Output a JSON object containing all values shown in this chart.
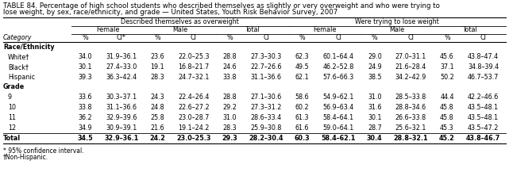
{
  "title_line1": "TABLE 84. Percentage of high school students who described themselves as slightly or very overweight and who were trying to",
  "title_line2": "lose weight, by sex, race/ethnicity, and grade — United States, Youth Risk Behavior Survey, 2007",
  "col_group1": "Described themselves as overweight",
  "col_group2": "Were trying to lose weight",
  "sub_groups": [
    "Female",
    "Male",
    "Total",
    "Female",
    "Male",
    "Total"
  ],
  "col_headers": [
    "%",
    "CI*",
    "%",
    "CI",
    "%",
    "CI",
    "%",
    "CI",
    "%",
    "CI",
    "%",
    "CI"
  ],
  "category_col": "Category",
  "sections": [
    {
      "section_title": "Race/Ethnicity",
      "rows": [
        {
          "label": "White†",
          "values": [
            "34.0",
            "31.9–36.1",
            "23.6",
            "22.0–25.3",
            "28.8",
            "27.3–30.3",
            "62.3",
            "60.1–64.4",
            "29.0",
            "27.0–31.1",
            "45.6",
            "43.8–47.4"
          ]
        },
        {
          "label": "Black†",
          "values": [
            "30.1",
            "27.4–33.0",
            "19.1",
            "16.8–21.7",
            "24.6",
            "22.7–26.6",
            "49.5",
            "46.2–52.8",
            "24.9",
            "21.6–28.4",
            "37.1",
            "34.8–39.4"
          ]
        },
        {
          "label": "Hispanic",
          "values": [
            "39.3",
            "36.3–42.4",
            "28.3",
            "24.7–32.1",
            "33.8",
            "31.1–36.6",
            "62.1",
            "57.6–66.3",
            "38.5",
            "34.2–42.9",
            "50.2",
            "46.7–53.7"
          ]
        }
      ]
    },
    {
      "section_title": "Grade",
      "rows": [
        {
          "label": "9",
          "values": [
            "33.6",
            "30.3–37.1",
            "24.3",
            "22.4–26.4",
            "28.8",
            "27.1–30.6",
            "58.6",
            "54.9–62.1",
            "31.0",
            "28.5–33.8",
            "44.4",
            "42.2–46.6"
          ]
        },
        {
          "label": "10",
          "values": [
            "33.8",
            "31.1–36.6",
            "24.8",
            "22.6–27.2",
            "29.2",
            "27.3–31.2",
            "60.2",
            "56.9–63.4",
            "31.6",
            "28.8–34.6",
            "45.8",
            "43.5–48.1"
          ]
        },
        {
          "label": "11",
          "values": [
            "36.2",
            "32.9–39.6",
            "25.8",
            "23.0–28.7",
            "31.0",
            "28.6–33.4",
            "61.3",
            "58.4–64.1",
            "30.1",
            "26.6–33.8",
            "45.8",
            "43.5–48.1"
          ]
        },
        {
          "label": "12",
          "values": [
            "34.9",
            "30.9–39.1",
            "21.6",
            "19.1–24.2",
            "28.3",
            "25.9–30.8",
            "61.6",
            "59.0–64.1",
            "28.7",
            "25.6–32.1",
            "45.3",
            "43.5–47.2"
          ]
        }
      ]
    }
  ],
  "total_row": {
    "label": "Total",
    "values": [
      "34.5",
      "32.9–36.1",
      "24.2",
      "23.0–25.3",
      "29.3",
      "28.2–30.4",
      "60.3",
      "58.4–62.1",
      "30.4",
      "28.8–32.1",
      "45.2",
      "43.8–46.7"
    ]
  },
  "footnote1": "* 95% confidence interval.",
  "footnote2": "†Non-Hispanic.",
  "bg_color": "#ffffff"
}
